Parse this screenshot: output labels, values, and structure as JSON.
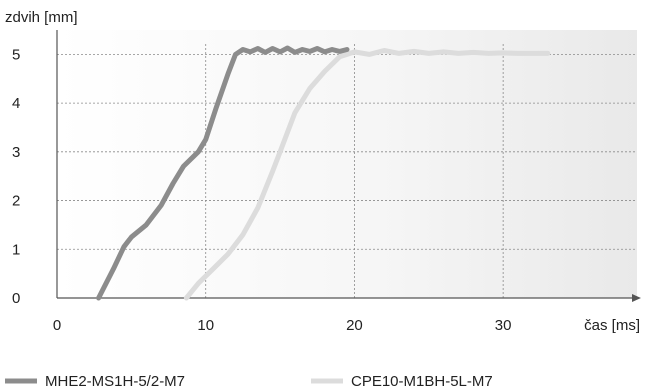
{
  "chart_data": {
    "type": "line",
    "title": "",
    "xlabel": "čas [ms]",
    "ylabel": "zdvih [mm]",
    "xlim": [
      0,
      39
    ],
    "ylim": [
      0,
      5.5
    ],
    "x_ticks": [
      0,
      10,
      20,
      30
    ],
    "y_ticks": [
      0,
      1,
      2,
      3,
      4,
      5
    ],
    "grid": true,
    "legend_position": "bottom",
    "series": [
      {
        "name": "MHE2-MS1H-5/2-M7",
        "color": "#8c8c8c",
        "x": [
          2.8,
          3.8,
          4.5,
          5.0,
          6.0,
          7.0,
          7.8,
          8.5,
          9.5,
          10.0,
          10.7,
          11.5,
          12.0,
          12.5,
          13.0,
          13.5,
          14.0,
          14.5,
          15.0,
          15.5,
          16.0,
          16.5,
          17.0,
          17.5,
          18.0,
          18.5,
          19.0,
          19.5
        ],
        "values": [
          0,
          0.6,
          1.05,
          1.25,
          1.5,
          1.9,
          2.35,
          2.7,
          3.0,
          3.25,
          3.9,
          4.6,
          5.0,
          5.1,
          5.05,
          5.12,
          5.04,
          5.12,
          5.05,
          5.13,
          5.04,
          5.1,
          5.06,
          5.12,
          5.05,
          5.1,
          5.06,
          5.1
        ]
      },
      {
        "name": "CPE10-M1BH-5L-M7",
        "color": "#dcdcdc",
        "x": [
          8.7,
          9.5,
          10.5,
          11.5,
          12.5,
          13.5,
          14.5,
          15.0,
          15.5,
          16.0,
          17.0,
          18.0,
          19.0,
          19.5,
          20.0,
          21.0,
          22.0,
          23.0,
          24.0,
          25.0,
          26.0,
          27.0,
          28.0,
          29.0,
          30.0,
          31.0,
          32.0,
          33.0
        ],
        "values": [
          0,
          0.3,
          0.6,
          0.9,
          1.3,
          1.85,
          2.6,
          3.0,
          3.4,
          3.8,
          4.3,
          4.65,
          4.95,
          5.0,
          5.05,
          5.0,
          5.08,
          5.02,
          5.06,
          5.02,
          5.05,
          5.02,
          5.04,
          5.02,
          5.03,
          5.02,
          5.02,
          5.02
        ]
      }
    ]
  }
}
